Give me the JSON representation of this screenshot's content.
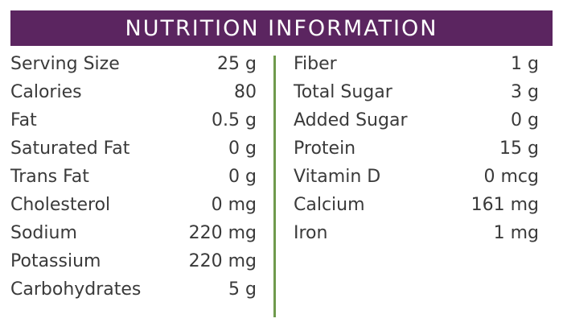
{
  "header": {
    "title": "NUTRITION INFORMATION"
  },
  "left_column": [
    {
      "label": "Serving Size",
      "value": "25 g"
    },
    {
      "label": "Calories",
      "value": "80"
    },
    {
      "label": "Fat",
      "value": "0.5 g"
    },
    {
      "label": "Saturated Fat",
      "value": "0 g"
    },
    {
      "label": "Trans Fat",
      "value": "0 g"
    },
    {
      "label": "Cholesterol",
      "value": "0 mg"
    },
    {
      "label": "Sodium",
      "value": "220 mg"
    },
    {
      "label": "Potassium",
      "value": "220 mg"
    },
    {
      "label": "Carbohydrates",
      "value": "5 g"
    }
  ],
  "right_column": [
    {
      "label": "Fiber",
      "value": "1 g"
    },
    {
      "label": "Total Sugar",
      "value": "3 g"
    },
    {
      "label": "Added Sugar",
      "value": "0 g"
    },
    {
      "label": "Protein",
      "value": "15 g"
    },
    {
      "label": "Vitamin D",
      "value": "0 mcg"
    },
    {
      "label": "Calcium",
      "value": "161 mg"
    },
    {
      "label": "Iron",
      "value": "1 mg"
    }
  ],
  "colors": {
    "header_background": "#5b2560",
    "header_text": "#ffffff",
    "divider": "#6f9a4c",
    "body_text": "#3a3a3a"
  }
}
